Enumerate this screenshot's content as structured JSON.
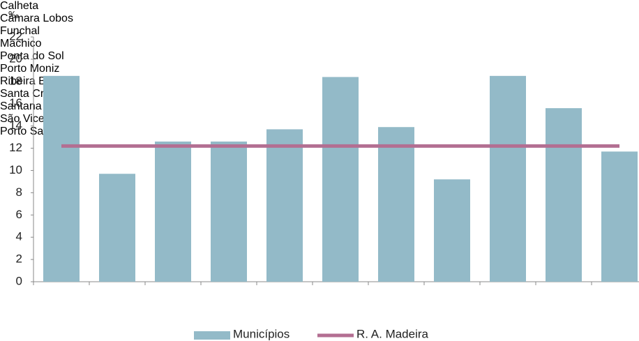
{
  "chart_data": {
    "type": "bar_line",
    "unit_label": "‰",
    "categories": [
      "Calheta",
      "Câmara\nLobos",
      "Funchal",
      "Machico",
      "Ponta\ndo Sol",
      "Porto\nMoniz",
      "Ribeira\nBrava",
      "Santa\nCruz",
      "Santana",
      "São\nVicente",
      "Porto\nSanto"
    ],
    "series": [
      {
        "name": "Municípios",
        "type": "bar",
        "color": "#93bac8",
        "values": [
          18.5,
          9.7,
          12.6,
          12.6,
          13.7,
          18.4,
          13.9,
          9.2,
          18.5,
          15.6,
          11.7
        ]
      },
      {
        "name": "R. A. Madeira",
        "type": "line",
        "color": "#b36f92",
        "values": [
          12.2,
          12.2,
          12.2,
          12.2,
          12.2,
          12.2,
          12.2,
          12.2,
          12.2,
          12.2,
          12.2
        ]
      }
    ],
    "ylim": [
      0,
      22
    ],
    "yticks": [
      0,
      2,
      4,
      6,
      8,
      10,
      12,
      14,
      16,
      18,
      20,
      22
    ],
    "grid": false
  }
}
